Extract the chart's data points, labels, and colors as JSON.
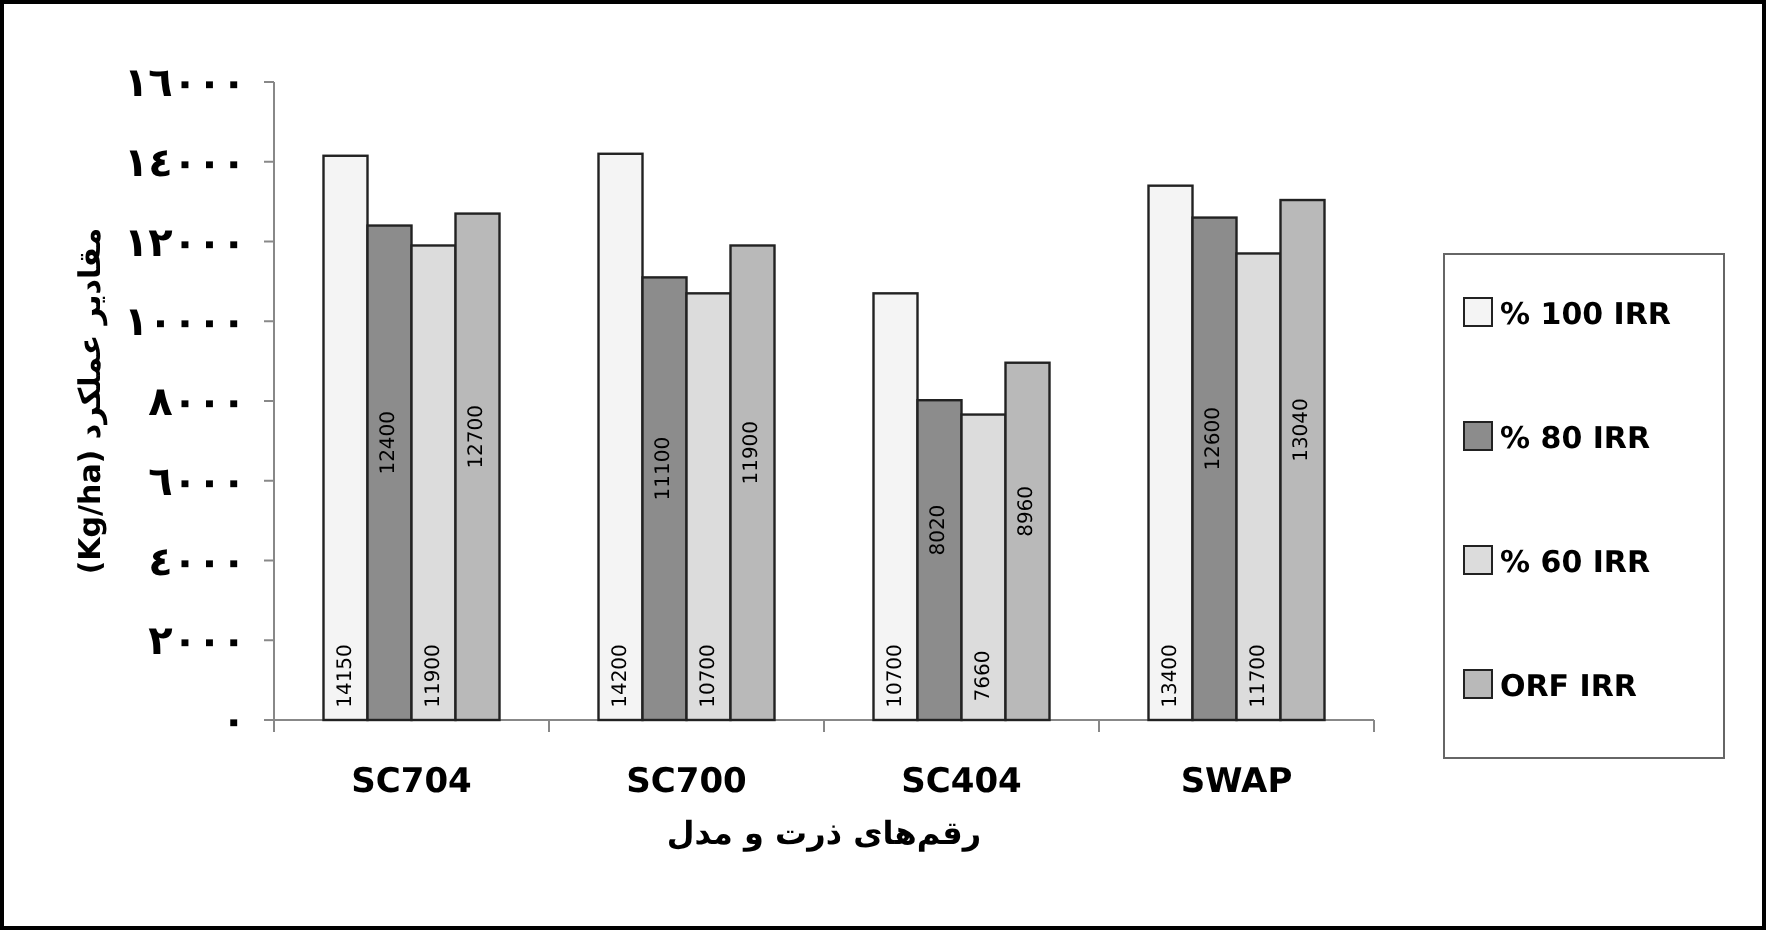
{
  "chart_data": {
    "type": "bar",
    "xlabel": "رقم‌های ذرت و مدل",
    "ylabel": "مقادیر عملکرد (Kg/ha)",
    "categories": [
      "SC704",
      "SC700",
      "SC404",
      "SWAP"
    ],
    "series": [
      {
        "name": "% 100 IRR",
        "color": "#f4f4f4",
        "values": [
          14150,
          14200,
          10700,
          13400
        ]
      },
      {
        "name": "% 80 IRR",
        "color": "#8c8c8c",
        "values": [
          12400,
          11100,
          8020,
          12600
        ]
      },
      {
        "name": "% 60 IRR",
        "color": "#dcdcdc",
        "values": [
          11900,
          10700,
          7660,
          11700
        ]
      },
      {
        "name": "ORF IRR",
        "color": "#b9b9b9",
        "values": [
          12700,
          11900,
          8960,
          13040
        ]
      }
    ],
    "ylim": [
      0,
      16000
    ],
    "yticks": [
      {
        "value": 0,
        "label": "٠"
      },
      {
        "value": 2000,
        "label": "٢٠٠٠"
      },
      {
        "value": 4000,
        "label": "٤٠٠٠"
      },
      {
        "value": 6000,
        "label": "٦٠٠٠"
      },
      {
        "value": 8000,
        "label": "٨٠٠٠"
      },
      {
        "value": 10000,
        "label": "١٠٠٠٠"
      },
      {
        "value": 12000,
        "label": "١٢٠٠٠"
      },
      {
        "value": 14000,
        "label": "١٤٠٠٠"
      },
      {
        "value": 16000,
        "label": "١٦٠٠٠"
      }
    ],
    "data_labels": true,
    "grid": false,
    "legend": "right"
  }
}
